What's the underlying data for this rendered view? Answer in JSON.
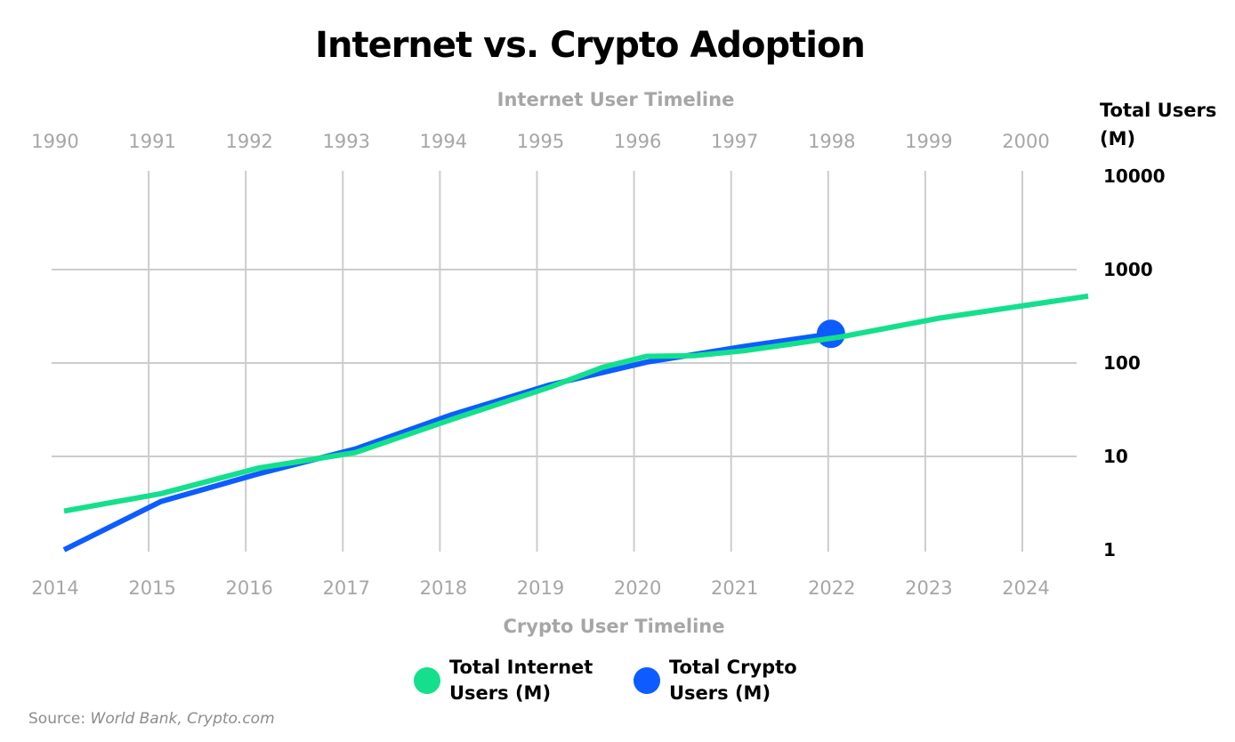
{
  "colors": {
    "internet": "#14e08c",
    "crypto": "#0d5cff",
    "grid": "#cccccc"
  },
  "chart_data": {
    "type": "line",
    "title": "Internet vs. Crypto Adoption",
    "top_axis_label": "Internet User Timeline",
    "bottom_axis_label": "Crypto User Timeline",
    "ylabel": "Total Users (M)",
    "yscale": "log",
    "ylim": [
      1,
      10000
    ],
    "y_ticks": [
      "10000",
      "1000",
      "100",
      "10",
      "1"
    ],
    "internet_years": [
      "1990",
      "1991",
      "1992",
      "1993",
      "1994",
      "1995",
      "1996",
      "1997",
      "1998",
      "1999",
      "2000"
    ],
    "crypto_years": [
      "2014",
      "2015",
      "2016",
      "2017",
      "2018",
      "2019",
      "2020",
      "2021",
      "2022",
      "2023",
      "2024"
    ],
    "series": [
      {
        "name": "Total Internet Users (M)",
        "x_axis": "top",
        "x": [
          1990,
          1991,
          1992,
          1993,
          1994,
          1995,
          1995.55,
          1996,
          1996.5,
          1997,
          1998,
          1999,
          2000.55
        ],
        "values": [
          2.6,
          4,
          7.5,
          11,
          25,
          55,
          90,
          118,
          120,
          135,
          190,
          300,
          520
        ]
      },
      {
        "name": "Total Crypto Users (M)",
        "x_axis": "bottom",
        "x": [
          2014,
          2015,
          2016,
          2017,
          2018,
          2019,
          2020,
          2021,
          2021.9
        ],
        "values": [
          1,
          3.3,
          6.5,
          12,
          28,
          58,
          102,
          150,
          205
        ],
        "highlight_last": true
      }
    ],
    "legend": [
      {
        "label": "Total Internet\nUsers (M)",
        "series": "Total Internet Users (M)"
      },
      {
        "label": "Total Crypto\nUsers (M)",
        "series": "Total Crypto Users (M)"
      }
    ],
    "legend_position": "bottom-center",
    "grid": true
  },
  "source": {
    "prefix": "Source: ",
    "text": "World Bank, Crypto.com"
  }
}
